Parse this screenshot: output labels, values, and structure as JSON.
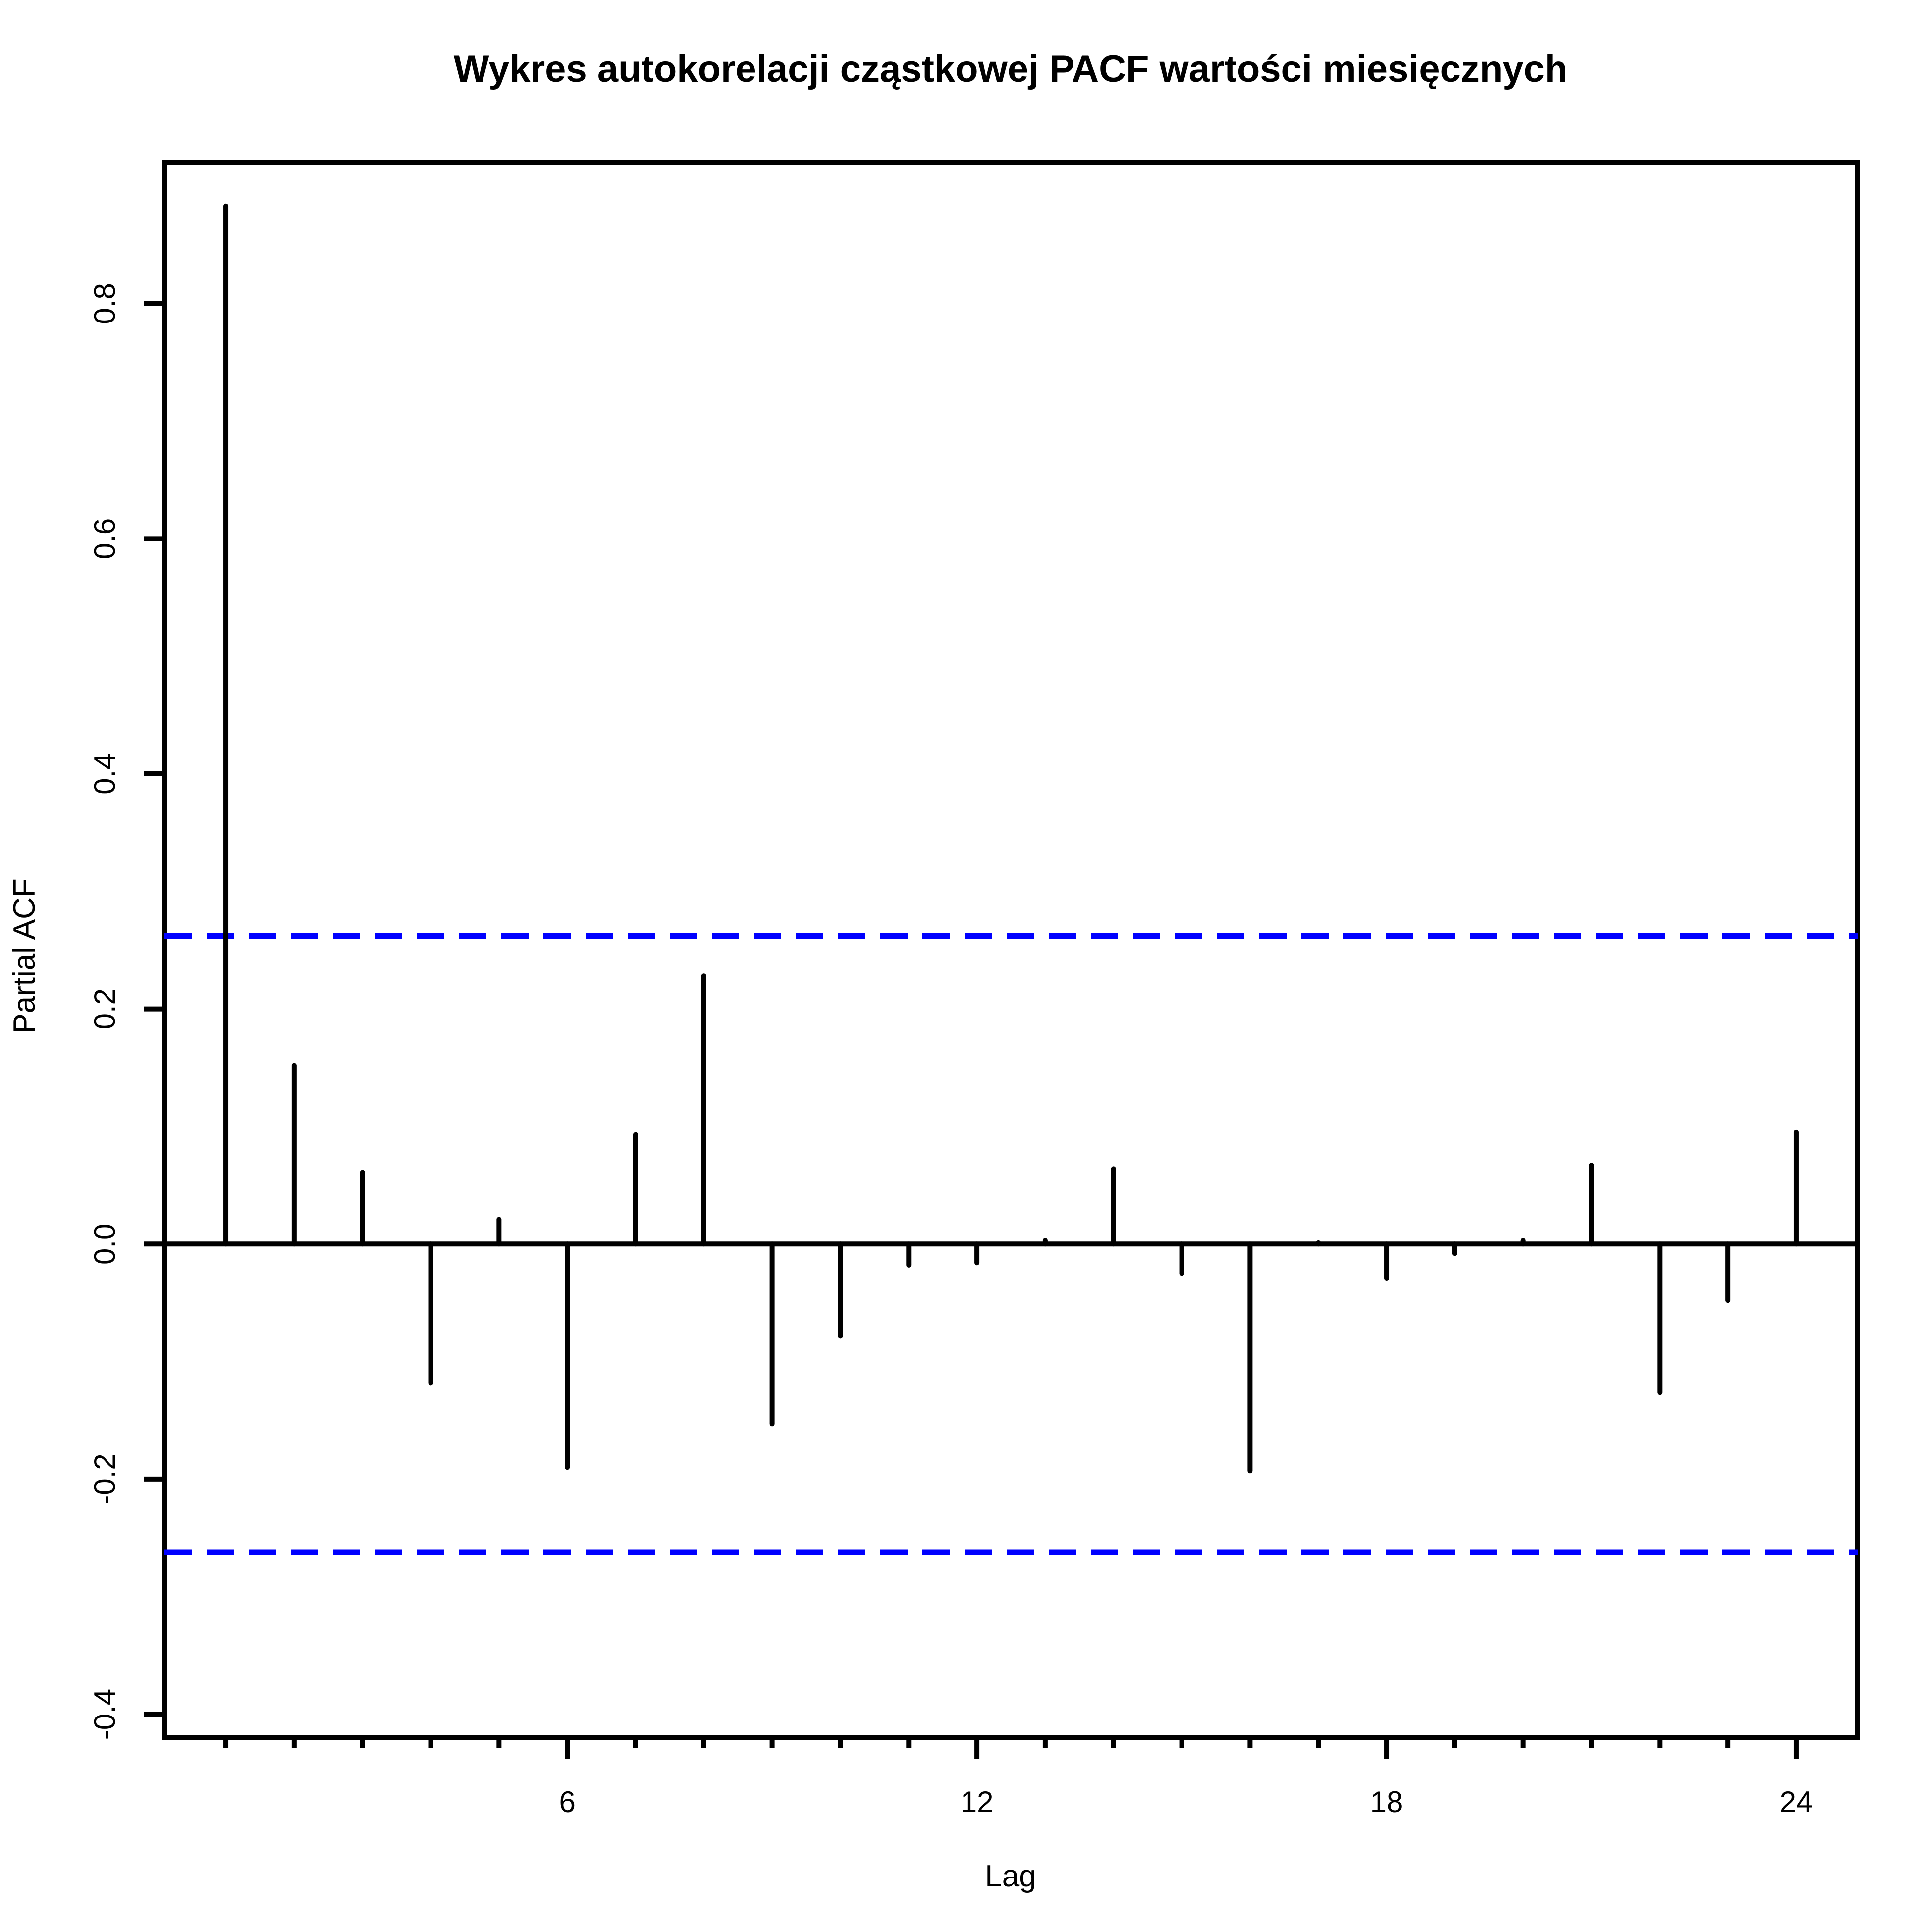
{
  "chart_data": {
    "type": "bar",
    "title": "Wykres autokorelacji cząstkowej PACF wartości miesięcznych",
    "xlabel": "Lag",
    "ylabel": "Partial ACF",
    "x": [
      1,
      2,
      3,
      4,
      5,
      6,
      7,
      8,
      9,
      10,
      11,
      12,
      13,
      14,
      15,
      16,
      17,
      18,
      19,
      20,
      21,
      22,
      23,
      24
    ],
    "values": [
      0.883,
      0.152,
      0.061,
      -0.118,
      0.021,
      -0.19,
      0.093,
      0.228,
      -0.153,
      -0.078,
      -0.018,
      -0.016,
      0.003,
      0.064,
      -0.025,
      -0.193,
      0.001,
      -0.029,
      -0.008,
      0.003,
      0.067,
      -0.126,
      -0.048,
      0.095
    ],
    "confidence_band": 0.262,
    "confidence_color": "#0000ff",
    "xlim": [
      0.1,
      24.9
    ],
    "ylim": [
      -0.42,
      0.92
    ],
    "x_ticks": [
      6,
      12,
      18,
      24
    ],
    "x_tick_labels": [
      "6",
      "12",
      "18",
      "24"
    ],
    "y_ticks": [
      -0.4,
      -0.2,
      0.0,
      0.2,
      0.4,
      0.6,
      0.8
    ],
    "y_tick_labels": [
      "-0.4",
      "-0.2",
      "0.0",
      "0.2",
      "0.4",
      "0.6",
      "0.8"
    ],
    "grid": false,
    "legend": "none"
  }
}
